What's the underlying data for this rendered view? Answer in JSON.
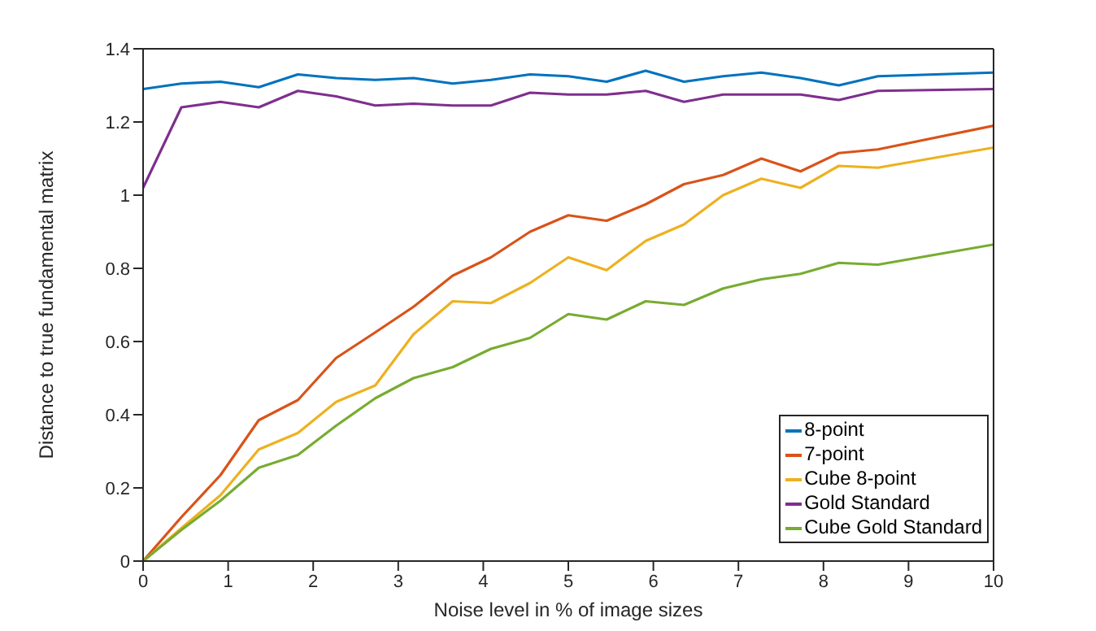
{
  "chart_data": {
    "type": "line",
    "xlabel": "Noise level in % of image sizes",
    "ylabel": "Distance to true fundamental matrix",
    "x": [
      0,
      0.45,
      0.91,
      1.36,
      1.82,
      2.27,
      2.73,
      3.18,
      3.64,
      4.09,
      4.55,
      5,
      5.45,
      5.91,
      6.36,
      6.82,
      7.27,
      7.73,
      8.18,
      8.64,
      10
    ],
    "xlim": [
      0,
      10
    ],
    "xticks": [
      0,
      1,
      2,
      3,
      4,
      5,
      6,
      7,
      8,
      9,
      10
    ],
    "ylim": [
      0,
      1.4
    ],
    "yticks": [
      0,
      0.2,
      0.4,
      0.6,
      0.8,
      1,
      1.2,
      1.4
    ],
    "grid": false,
    "legend": "bottom right",
    "marker": "none",
    "line_style": "solid",
    "series": [
      {
        "name": "8-point",
        "color": "#0072bd",
        "values": [
          1.29,
          1.305,
          1.31,
          1.295,
          1.33,
          1.32,
          1.315,
          1.32,
          1.305,
          1.315,
          1.33,
          1.325,
          1.31,
          1.34,
          1.31,
          1.325,
          1.335,
          1.32,
          1.3,
          1.325,
          1.335
        ]
      },
      {
        "name": "7-point",
        "color": "#d95319",
        "values": [
          0,
          0.12,
          0.235,
          0.385,
          0.44,
          0.555,
          0.625,
          0.695,
          0.78,
          0.83,
          0.9,
          0.945,
          0.93,
          0.975,
          1.03,
          1.055,
          1.1,
          1.065,
          1.115,
          1.125,
          1.19
        ]
      },
      {
        "name": "Cube 8-point",
        "color": "#edb120",
        "values": [
          0,
          0.09,
          0.18,
          0.305,
          0.35,
          0.435,
          0.48,
          0.62,
          0.71,
          0.705,
          0.76,
          0.83,
          0.795,
          0.875,
          0.92,
          1,
          1.045,
          1.02,
          1.08,
          1.075,
          1.13
        ]
      },
      {
        "name": "Gold Standard",
        "color": "#7e2f8e",
        "values": [
          1.02,
          1.24,
          1.255,
          1.24,
          1.285,
          1.27,
          1.245,
          1.25,
          1.245,
          1.245,
          1.28,
          1.275,
          1.275,
          1.285,
          1.255,
          1.275,
          1.275,
          1.275,
          1.26,
          1.285,
          1.29
        ]
      },
      {
        "name": "Cube Gold Standard",
        "color": "#77ac30",
        "values": [
          0,
          0.085,
          0.165,
          0.255,
          0.29,
          0.37,
          0.445,
          0.5,
          0.53,
          0.58,
          0.61,
          0.675,
          0.66,
          0.71,
          0.7,
          0.745,
          0.77,
          0.785,
          0.815,
          0.81,
          0.865
        ]
      }
    ]
  }
}
